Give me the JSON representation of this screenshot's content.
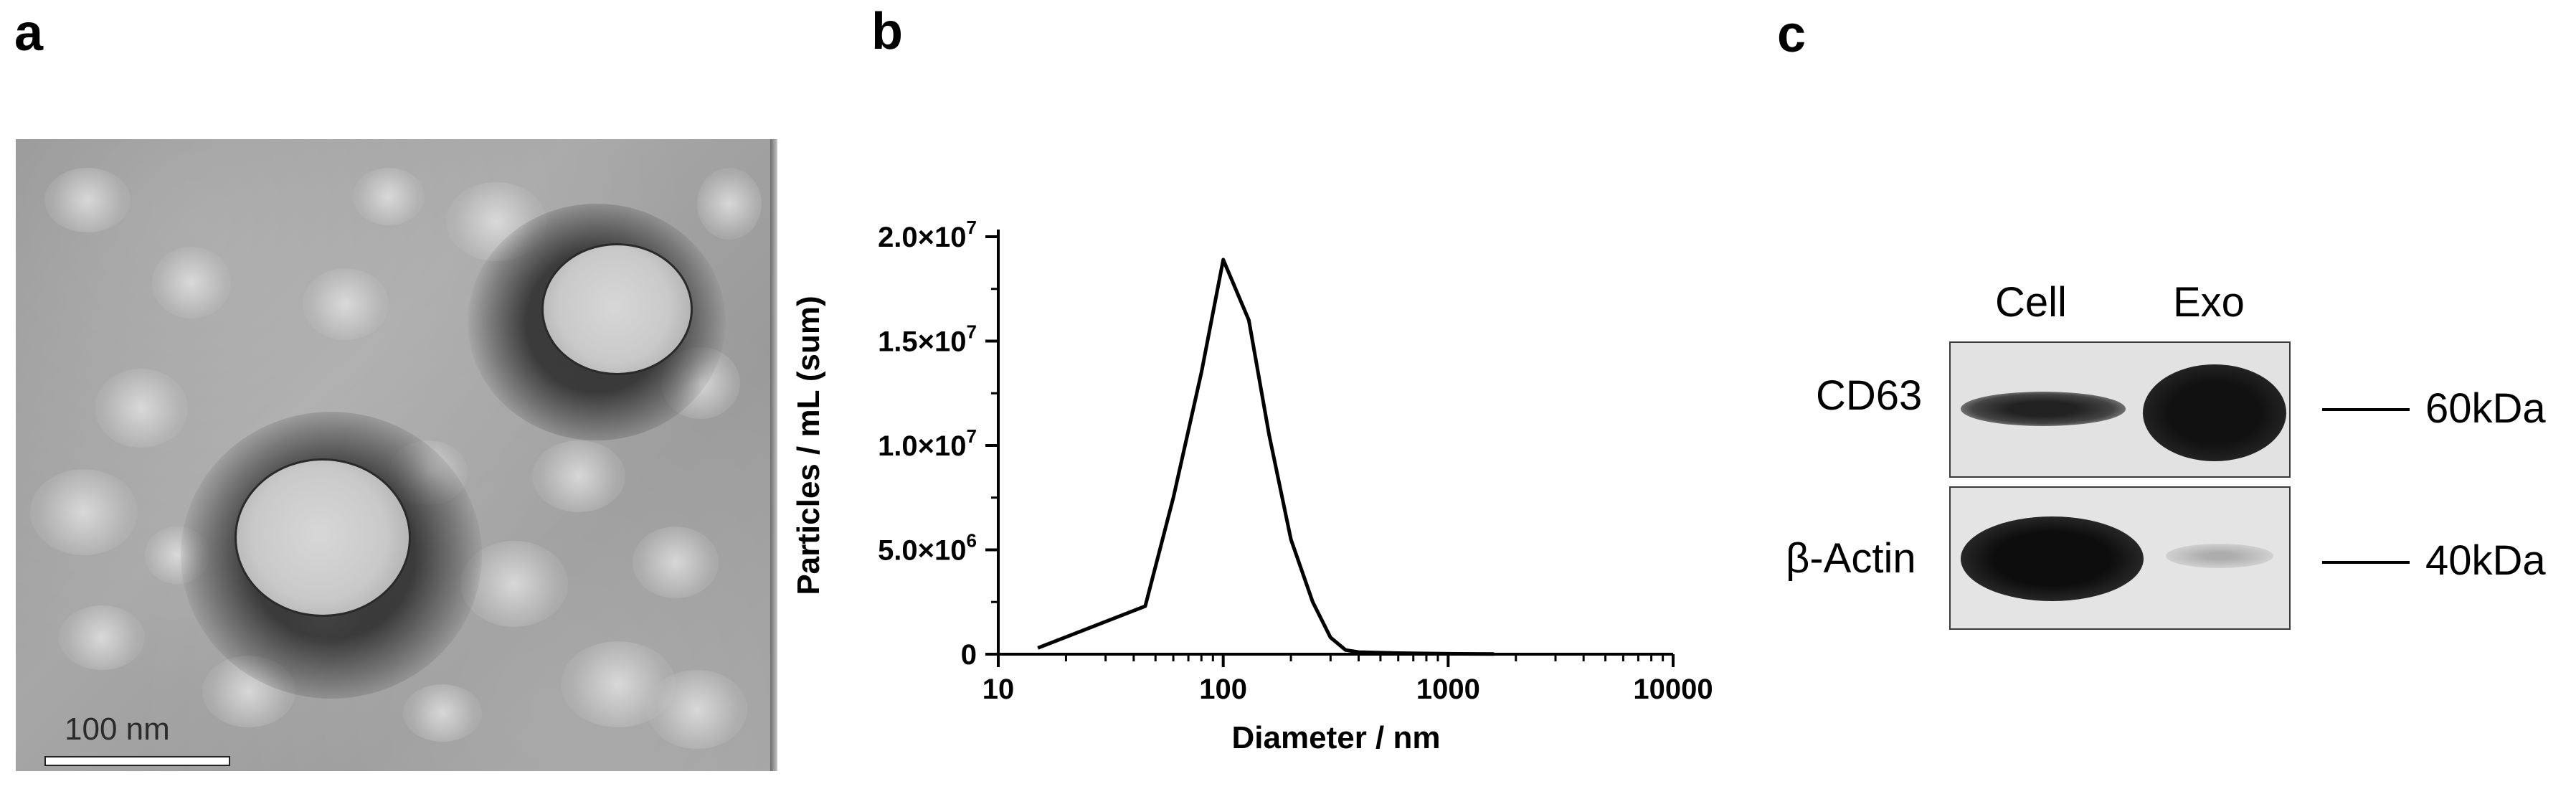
{
  "panels": {
    "a": {
      "letter": "a",
      "scale_bar_label": "100 nm"
    },
    "b": {
      "letter": "b"
    },
    "c": {
      "letter": "c",
      "lanes": [
        "Cell",
        "Exo"
      ],
      "rows": [
        {
          "label": "CD63",
          "marker": "60kDa",
          "band_intensity": {
            "Cell": 0.55,
            "Exo": 1.0
          }
        },
        {
          "label": "β-Actin",
          "marker": "40kDa",
          "band_intensity": {
            "Cell": 1.0,
            "Exo": 0.08
          }
        }
      ]
    }
  },
  "chart_data": {
    "type": "line",
    "title": "",
    "xlabel": "Diameter / nm",
    "ylabel": "Particles / mL (sum)",
    "xscale": "log",
    "xlim": [
      10,
      10000
    ],
    "ylim": [
      0,
      20000000
    ],
    "xticks": [
      10,
      100,
      1000,
      10000
    ],
    "xtick_labels": [
      "10",
      "100",
      "1000",
      "10000"
    ],
    "yticks": [
      0,
      5000000,
      10000000,
      15000000,
      20000000
    ],
    "ytick_labels": [
      {
        "mantissa": "0",
        "exp": ""
      },
      {
        "mantissa": "5.0×10",
        "exp": "6"
      },
      {
        "mantissa": "1.0×10",
        "exp": "7"
      },
      {
        "mantissa": "1.5×10",
        "exp": "7"
      },
      {
        "mantissa": "2.0×10",
        "exp": "7"
      }
    ],
    "grid": false,
    "series": [
      {
        "color": "#000000",
        "x": [
          15,
          45,
          60,
          80,
          100,
          130,
          160,
          200,
          250,
          300,
          350,
          400,
          600,
          1000,
          1600
        ],
        "y": [
          300000,
          2300000,
          7500000,
          13500000,
          18900000,
          16000000,
          10500000,
          5500000,
          2500000,
          800000,
          200000,
          100000,
          50000,
          20000,
          10000
        ]
      }
    ]
  }
}
